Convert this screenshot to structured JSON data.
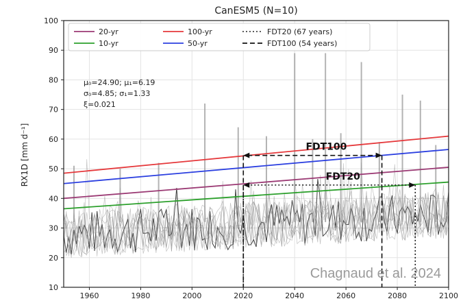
{
  "chart_data": {
    "type": "line",
    "title": "CanESM5 (N=10)",
    "ylabel": "RX1D [mm d⁻¹]",
    "xlabel": "",
    "xlim": [
      1950,
      2100
    ],
    "ylim": [
      10,
      100
    ],
    "xticks": [
      1960,
      1980,
      2000,
      2020,
      2040,
      2060,
      2080,
      2100
    ],
    "yticks": [
      10,
      20,
      30,
      40,
      50,
      60,
      70,
      80,
      90,
      100
    ],
    "grid": true,
    "legend_position": "top",
    "legend": [
      {
        "label": "20-yr",
        "color": "#9b3a74",
        "style": "solid"
      },
      {
        "label": "100-yr",
        "color": "#e5383b",
        "style": "solid"
      },
      {
        "label": "FDT20 (67 years)",
        "color": "#444444",
        "style": "dotted"
      },
      {
        "label": "10-yr",
        "color": "#2ca02c",
        "style": "solid"
      },
      {
        "label": "50-yr",
        "color": "#2b3fe0",
        "style": "solid"
      },
      {
        "label": "FDT100 (54 years)",
        "color": "#111111",
        "style": "dashed"
      }
    ],
    "params_text": [
      "μ₀=24.90; μ₁=6.19",
      "σ₀=4.85; σ₁=1.33",
      "ξ=0.021"
    ],
    "return_levels": [
      {
        "name": "100-yr",
        "color": "#e5383b",
        "x": [
          1950,
          2100
        ],
        "y": [
          48.5,
          61
        ]
      },
      {
        "name": "50-yr",
        "color": "#2b3fe0",
        "x": [
          1950,
          2100
        ],
        "y": [
          45,
          56.5
        ]
      },
      {
        "name": "20-yr",
        "color": "#9b3a74",
        "x": [
          1950,
          2100
        ],
        "y": [
          40,
          50.5
        ]
      },
      {
        "name": "10-yr",
        "color": "#2ca02c",
        "x": [
          1950,
          2100
        ],
        "y": [
          36.5,
          45.5
        ]
      }
    ],
    "ensemble_spikes": [
      {
        "x": 2005,
        "y": 72
      },
      {
        "x": 2018,
        "y": 64
      },
      {
        "x": 2040,
        "y": 89
      },
      {
        "x": 2052,
        "y": 89
      },
      {
        "x": 2066,
        "y": 86
      },
      {
        "x": 2082,
        "y": 75
      },
      {
        "x": 2089,
        "y": 73
      },
      {
        "x": 2058,
        "y": 62
      },
      {
        "x": 2047,
        "y": 60
      },
      {
        "x": 2029,
        "y": 61
      },
      {
        "x": 2073,
        "y": 59
      },
      {
        "x": 1954,
        "y": 51
      },
      {
        "x": 1972,
        "y": 50
      },
      {
        "x": 1987,
        "y": 52
      },
      {
        "x": 2095,
        "y": 58
      }
    ],
    "fdt_markers": [
      {
        "name": "FDT100",
        "label": "FDT100",
        "from": 2020,
        "to": 2074,
        "y": 54.5,
        "style": "dashed"
      },
      {
        "name": "FDT20",
        "label": "FDT20",
        "from": 2020,
        "to": 2087,
        "y": 44.5,
        "style": "dotted"
      }
    ],
    "credit": "Chagnaud et al. 2024"
  }
}
